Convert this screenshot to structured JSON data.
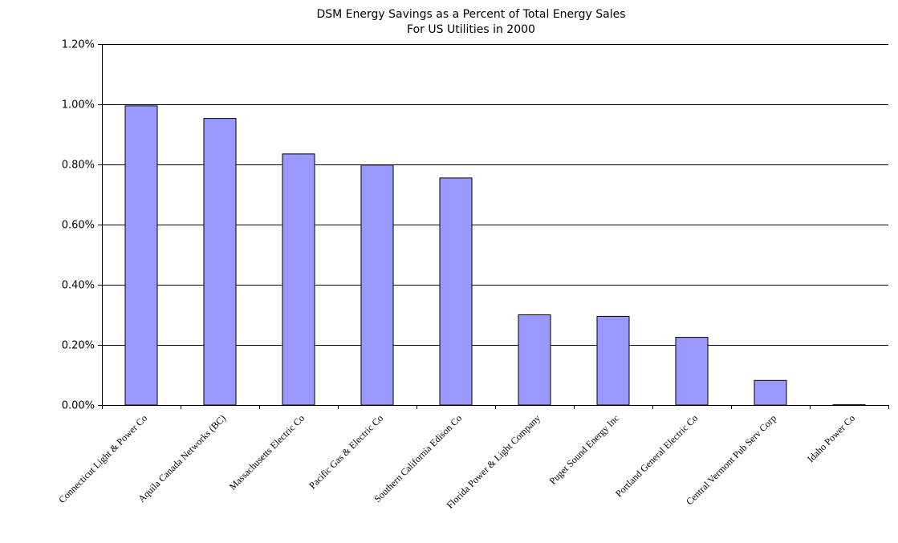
{
  "chart_data": {
    "type": "bar",
    "title": "DSM Energy Savings as a Percent of Total Energy Sales",
    "subtitle": "For US Utilities in 2000",
    "xlabel": "",
    "ylabel": "",
    "categories": [
      "Connecticut Light & Power Co",
      "Aquila Canada Networks (BC)",
      "Massachusetts Electric Co",
      "Pacific Gas & Electric Co",
      "Southern California Edison Co",
      "Florida Power & Light Company",
      "Puget Sound Energy Inc",
      "Portland General Electric Co",
      "Central Vermont Pub Serv Corp",
      "Idaho Power Co"
    ],
    "values": [
      0.995,
      0.953,
      0.835,
      0.798,
      0.755,
      0.3,
      0.295,
      0.225,
      0.082,
      0.001
    ],
    "value_unit": "percent",
    "ylim": [
      0,
      1.2
    ],
    "yticks": [
      0,
      0.2,
      0.4,
      0.6,
      0.8,
      1.0,
      1.2
    ],
    "ytick_labels": [
      "0.00%",
      "0.20%",
      "0.40%",
      "0.60%",
      "0.80%",
      "1.00%",
      "1.20%"
    ],
    "grid": true,
    "legend": "none",
    "colors": {
      "bar_fill": "#9999ff",
      "bar_stroke": "#000000",
      "grid": "#000000",
      "axis": "#000000",
      "background": "#ffffff"
    }
  }
}
